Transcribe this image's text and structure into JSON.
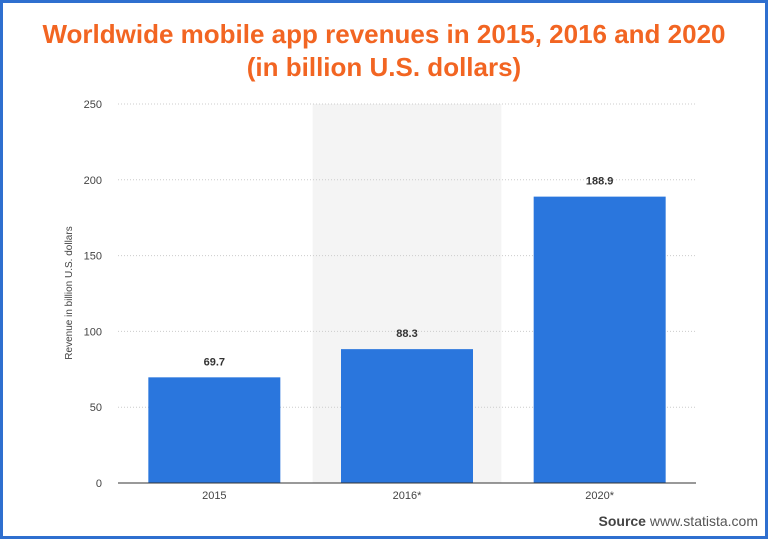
{
  "chart_data": {
    "type": "bar",
    "title_line1": "Worldwide mobile app revenues in 2015, 2016 and 2020",
    "title_line2": "(in billion U.S. dollars)",
    "categories": [
      "2015",
      "2016*",
      "2020*"
    ],
    "values": [
      69.7,
      88.3,
      188.9
    ],
    "value_labels": [
      "69.7",
      "88.3",
      "188.9"
    ],
    "xlabel": "",
    "ylabel": "Revenue in billion U.S. dollars",
    "ylim": [
      0,
      250
    ],
    "yticks": [
      0,
      50,
      100,
      150,
      200,
      250
    ],
    "grid": true,
    "highlighted_category": "2016*",
    "bar_color": "#2a76dd",
    "title_color": "#f26522"
  },
  "source": {
    "label": "Source",
    "text": "www.statista.com"
  }
}
